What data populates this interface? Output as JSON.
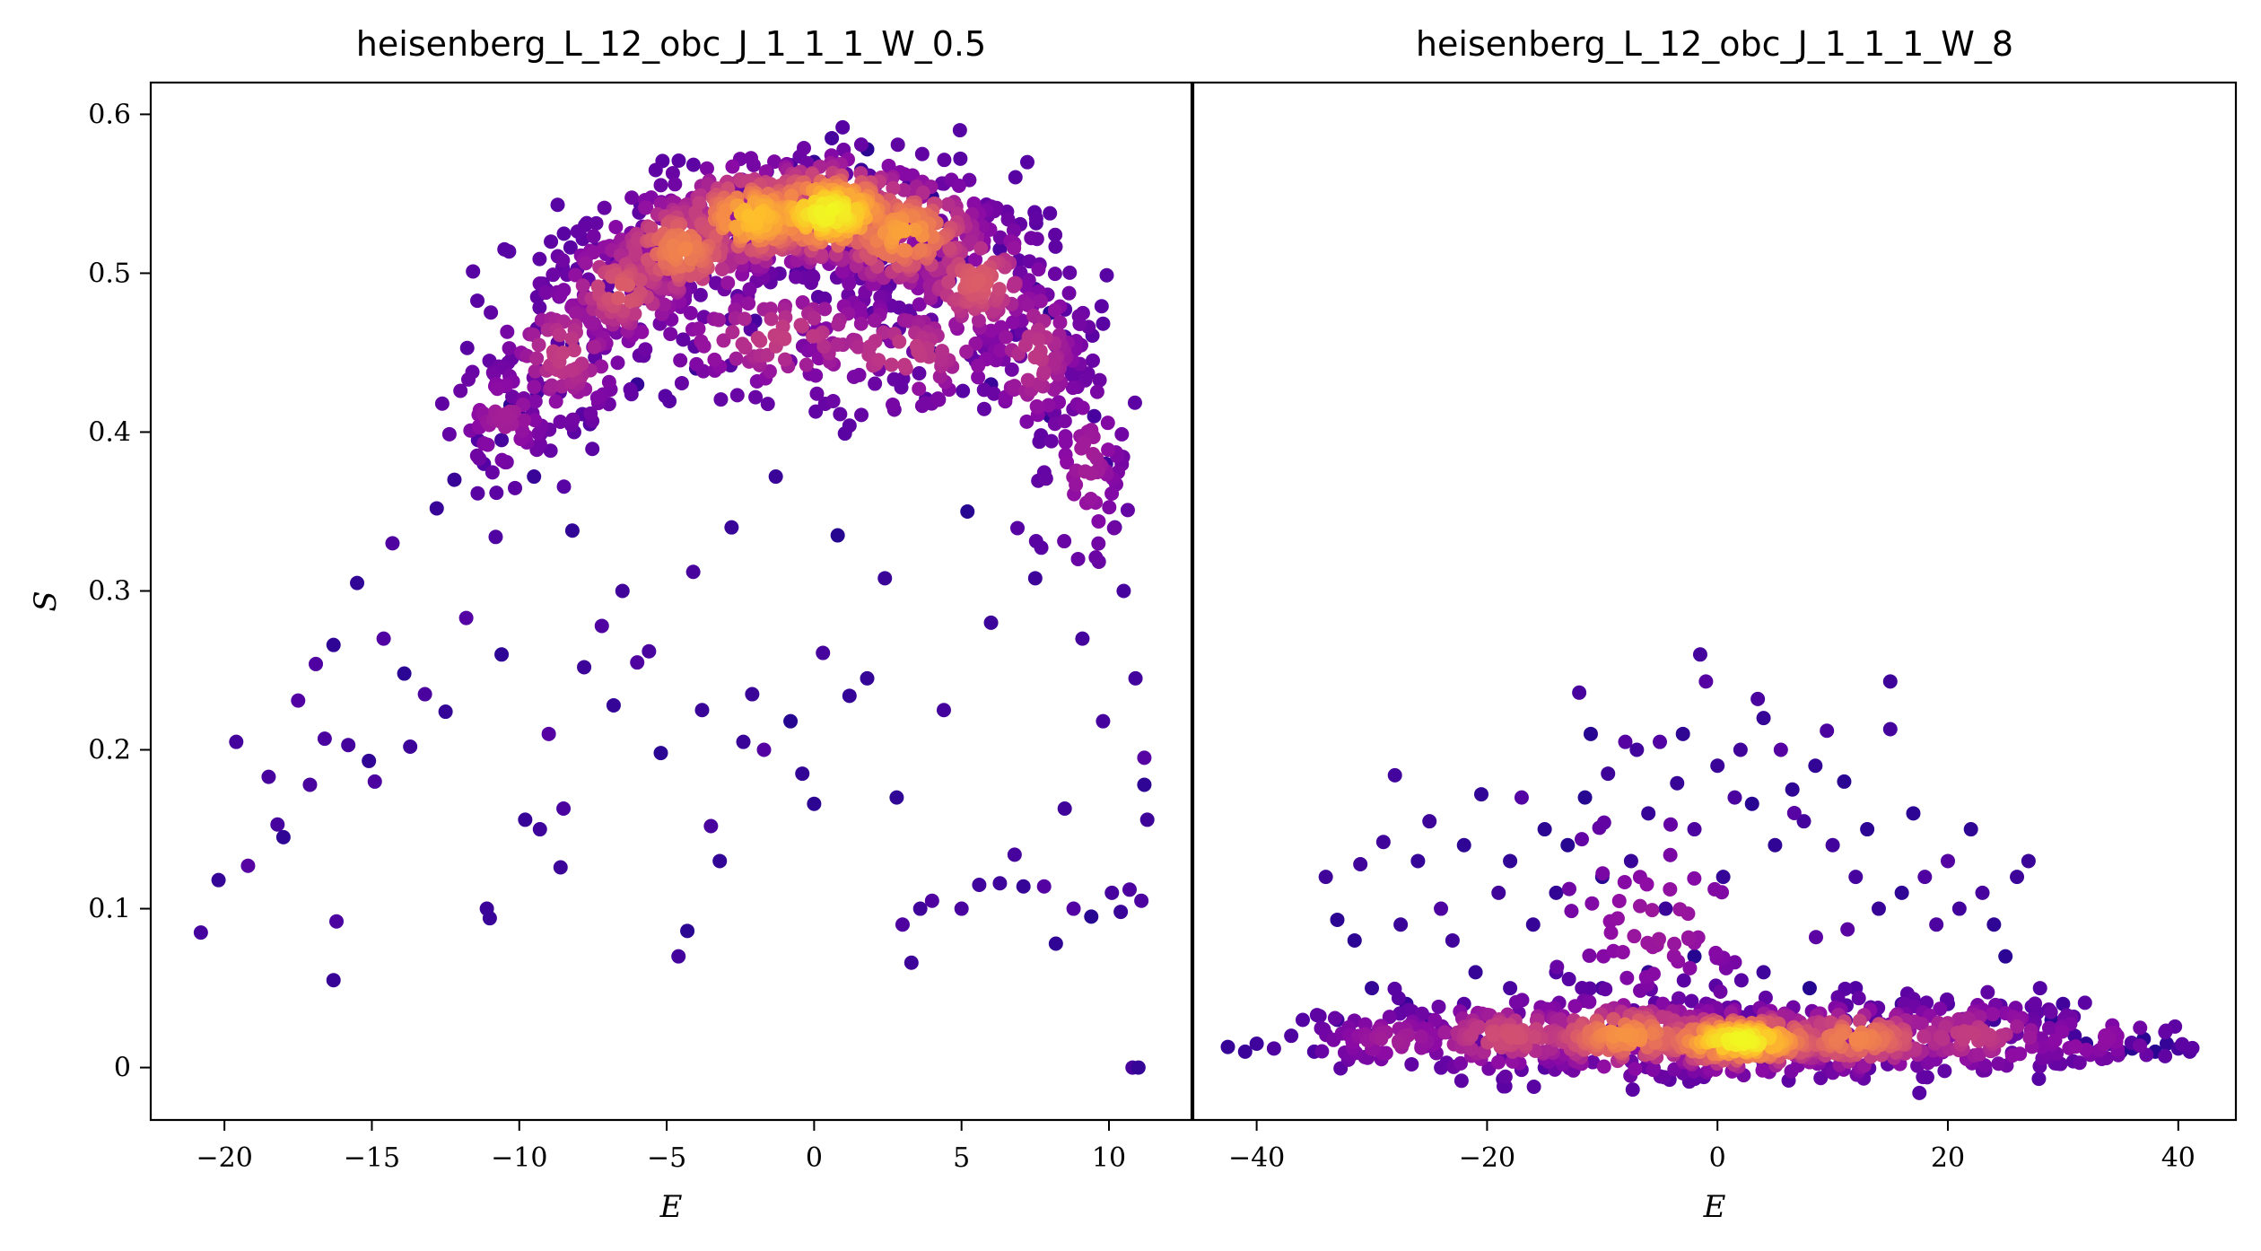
{
  "chart_data": [
    {
      "type": "scatter",
      "title": "heisenberg_L_12_obc_J_1_1_1_W_0.5",
      "xlabel": "E",
      "ylabel": "S",
      "xlim": [
        -22.5,
        12.8
      ],
      "ylim": [
        -0.033,
        0.62
      ],
      "xticks": [
        -20,
        -15,
        -10,
        -5,
        0,
        5,
        10
      ],
      "yticks": [
        0,
        0.1,
        0.2,
        0.3,
        0.4,
        0.5,
        0.6
      ],
      "ytick_labels": [
        "0",
        "0.1",
        "0.2",
        "0.3",
        "0.4",
        "0.5",
        "0.6"
      ],
      "colormap": "plasma",
      "color_encoding": "point density",
      "description_of_distribution": "dense band shaped as an arch peaking near E=0, S≈0.53 with a lower branch near S≈0.45; sparse points below",
      "points": [
        [
          -20.8,
          0.085
        ],
        [
          -20.2,
          0.118
        ],
        [
          -19.6,
          0.205
        ],
        [
          -19.2,
          0.127
        ],
        [
          -18.5,
          0.183
        ],
        [
          -18.2,
          0.153
        ],
        [
          -18.0,
          0.145
        ],
        [
          -17.5,
          0.231
        ],
        [
          -17.1,
          0.178
        ],
        [
          -16.9,
          0.254
        ],
        [
          -16.6,
          0.207
        ],
        [
          -16.3,
          0.055
        ],
        [
          -16.2,
          0.092
        ],
        [
          -16.3,
          0.266
        ],
        [
          -15.8,
          0.203
        ],
        [
          -15.5,
          0.305
        ],
        [
          -15.1,
          0.193
        ],
        [
          -14.9,
          0.18
        ],
        [
          -14.6,
          0.27
        ],
        [
          -14.3,
          0.33
        ],
        [
          -13.9,
          0.248
        ],
        [
          -13.7,
          0.202
        ],
        [
          -13.2,
          0.235
        ],
        [
          -12.8,
          0.352
        ],
        [
          -12.5,
          0.224
        ],
        [
          -12.2,
          0.37
        ],
        [
          -11.8,
          0.283
        ],
        [
          -11.4,
          0.395
        ],
        [
          -11.1,
          0.1
        ],
        [
          -11.0,
          0.094
        ],
        [
          -10.8,
          0.334
        ],
        [
          -10.6,
          0.26
        ],
        [
          -10.3,
          0.417
        ],
        [
          -9.8,
          0.156
        ],
        [
          -9.5,
          0.372
        ],
        [
          -9.3,
          0.15
        ],
        [
          -9.0,
          0.21
        ],
        [
          -8.6,
          0.126
        ],
        [
          -8.5,
          0.163
        ],
        [
          -8.2,
          0.338
        ],
        [
          -7.8,
          0.252
        ],
        [
          -7.6,
          0.405
        ],
        [
          -7.2,
          0.278
        ],
        [
          -6.8,
          0.228
        ],
        [
          -6.5,
          0.3
        ],
        [
          -6.0,
          0.255
        ],
        [
          -5.6,
          0.262
        ],
        [
          -5.2,
          0.198
        ],
        [
          -4.6,
          0.07
        ],
        [
          -4.3,
          0.086
        ],
        [
          -4.1,
          0.312
        ],
        [
          -3.8,
          0.225
        ],
        [
          -3.5,
          0.152
        ],
        [
          -3.2,
          0.13
        ],
        [
          -2.8,
          0.34
        ],
        [
          -2.4,
          0.205
        ],
        [
          -2.1,
          0.235
        ],
        [
          -1.7,
          0.2
        ],
        [
          -1.3,
          0.372
        ],
        [
          -0.8,
          0.218
        ],
        [
          -0.4,
          0.185
        ],
        [
          0.0,
          0.166
        ],
        [
          0.3,
          0.261
        ],
        [
          0.8,
          0.335
        ],
        [
          1.2,
          0.234
        ],
        [
          1.8,
          0.245
        ],
        [
          2.4,
          0.308
        ],
        [
          2.8,
          0.17
        ],
        [
          3.0,
          0.09
        ],
        [
          3.3,
          0.066
        ],
        [
          3.6,
          0.1
        ],
        [
          4.0,
          0.105
        ],
        [
          4.4,
          0.225
        ],
        [
          5.0,
          0.1
        ],
        [
          5.2,
          0.35
        ],
        [
          5.6,
          0.115
        ],
        [
          6.0,
          0.28
        ],
        [
          6.3,
          0.116
        ],
        [
          6.8,
          0.134
        ],
        [
          7.1,
          0.114
        ],
        [
          7.5,
          0.308
        ],
        [
          7.8,
          0.114
        ],
        [
          8.2,
          0.078
        ],
        [
          8.5,
          0.163
        ],
        [
          8.8,
          0.1
        ],
        [
          9.1,
          0.27
        ],
        [
          9.4,
          0.095
        ],
        [
          9.8,
          0.218
        ],
        [
          10.1,
          0.11
        ],
        [
          10.4,
          0.098
        ],
        [
          10.7,
          0.112
        ],
        [
          10.8,
          0.0
        ],
        [
          11.0,
          0.0
        ],
        [
          11.1,
          0.105
        ],
        [
          11.2,
          0.195
        ],
        [
          11.3,
          0.156
        ],
        [
          11.2,
          0.178
        ],
        [
          10.9,
          0.245
        ],
        [
          10.5,
          0.3
        ],
        [
          10.2,
          0.34
        ],
        [
          9.9,
          0.38
        ],
        [
          9.5,
          0.41
        ],
        [
          9.0,
          0.435
        ],
        [
          8.5,
          0.46
        ],
        [
          8.0,
          0.475
        ],
        [
          7.5,
          0.49
        ],
        [
          7.0,
          0.5
        ],
        [
          6.3,
          0.515
        ],
        [
          5.6,
          0.53
        ],
        [
          4.8,
          0.54
        ],
        [
          4.0,
          0.548
        ],
        [
          3.2,
          0.555
        ],
        [
          2.4,
          0.56
        ],
        [
          1.6,
          0.565
        ],
        [
          0.8,
          0.568
        ],
        [
          0.0,
          0.57
        ],
        [
          -0.8,
          0.568
        ],
        [
          -1.6,
          0.564
        ],
        [
          -2.4,
          0.558
        ],
        [
          -3.2,
          0.55
        ],
        [
          -4.0,
          0.54
        ],
        [
          -4.8,
          0.528
        ],
        [
          -5.6,
          0.514
        ],
        [
          -6.3,
          0.5
        ],
        [
          -7.0,
          0.486
        ],
        [
          -7.6,
          0.47
        ],
        [
          -8.2,
          0.455
        ],
        [
          -8.8,
          0.44
        ],
        [
          -9.4,
          0.425
        ],
        [
          -10.0,
          0.41
        ],
        [
          -10.6,
          0.395
        ],
        [
          -11.2,
          0.38
        ],
        [
          0.6,
          0.585
        ],
        [
          1.8,
          0.578
        ],
        [
          -0.6,
          0.5
        ],
        [
          0.4,
          0.51
        ],
        [
          -2.0,
          0.47
        ],
        [
          -4.0,
          0.44
        ],
        [
          -6.0,
          0.43
        ],
        [
          2.0,
          0.475
        ],
        [
          4.0,
          0.45
        ],
        [
          6.0,
          0.43
        ],
        [
          8.0,
          0.41
        ]
      ],
      "dense_band": [
        {
          "E_center": -10.5,
          "S_center": 0.41,
          "E_spread": 1.0,
          "S_spread": 0.02,
          "weight": 1.0
        },
        {
          "E_center": -8.5,
          "S_center": 0.45,
          "E_spread": 1.2,
          "S_spread": 0.025,
          "weight": 1.5
        },
        {
          "E_center": -6.5,
          "S_center": 0.49,
          "E_spread": 1.2,
          "S_spread": 0.02,
          "weight": 2.0
        },
        {
          "E_center": -4.5,
          "S_center": 0.515,
          "E_spread": 1.4,
          "S_spread": 0.02,
          "weight": 2.6
        },
        {
          "E_center": -2.0,
          "S_center": 0.535,
          "E_spread": 1.6,
          "S_spread": 0.018,
          "weight": 3.4
        },
        {
          "E_center": 0.5,
          "S_center": 0.538,
          "E_spread": 1.8,
          "S_spread": 0.018,
          "weight": 4.0
        },
        {
          "E_center": 3.0,
          "S_center": 0.525,
          "E_spread": 1.6,
          "S_spread": 0.02,
          "weight": 3.0
        },
        {
          "E_center": 5.5,
          "S_center": 0.495,
          "E_spread": 1.3,
          "S_spread": 0.022,
          "weight": 2.0
        },
        {
          "E_center": 7.5,
          "S_center": 0.45,
          "E_spread": 1.0,
          "S_spread": 0.03,
          "weight": 1.4
        },
        {
          "E_center": 9.3,
          "S_center": 0.38,
          "E_spread": 0.8,
          "S_spread": 0.035,
          "weight": 1.0
        },
        {
          "E_center": -1.0,
          "S_center": 0.46,
          "E_spread": 2.5,
          "S_spread": 0.02,
          "weight": 1.5
        },
        {
          "E_center": 3.0,
          "S_center": 0.45,
          "E_spread": 2.2,
          "S_spread": 0.02,
          "weight": 1.5
        }
      ]
    },
    {
      "type": "scatter",
      "title": "heisenberg_L_12_obc_J_1_1_1_W_8",
      "xlabel": "E",
      "ylabel": "",
      "xlim": [
        -45.5,
        45
      ],
      "ylim": [
        -0.033,
        0.62
      ],
      "xticks": [
        -40,
        -20,
        0,
        20,
        40
      ],
      "yticks": [],
      "colormap": "plasma",
      "color_encoding": "point density",
      "description_of_distribution": "flat dense band near S≈0.015 centered at E≈2; sparse cloud of points up to S≈0.26",
      "points": [
        [
          -42.5,
          0.013
        ],
        [
          -41.0,
          0.01
        ],
        [
          -40.0,
          0.015
        ],
        [
          -38.5,
          0.012
        ],
        [
          -37.0,
          0.02
        ],
        [
          -36.0,
          0.03
        ],
        [
          -34.0,
          0.12
        ],
        [
          -33.0,
          0.093
        ],
        [
          -31.5,
          0.08
        ],
        [
          -31.0,
          0.128
        ],
        [
          -30.0,
          0.05
        ],
        [
          -29.0,
          0.142
        ],
        [
          -28.0,
          0.184
        ],
        [
          -27.5,
          0.09
        ],
        [
          -26.0,
          0.13
        ],
        [
          -25.0,
          0.155
        ],
        [
          -24.0,
          0.1
        ],
        [
          -23.0,
          0.08
        ],
        [
          -22.0,
          0.14
        ],
        [
          -21.0,
          0.06
        ],
        [
          -20.5,
          0.172
        ],
        [
          -19.0,
          0.11
        ],
        [
          -18.0,
          0.13
        ],
        [
          -17.0,
          0.17
        ],
        [
          -16.0,
          0.09
        ],
        [
          -15.0,
          0.15
        ],
        [
          -14.0,
          0.11
        ],
        [
          -13.0,
          0.14
        ],
        [
          -12.0,
          0.236
        ],
        [
          -11.5,
          0.17
        ],
        [
          -11.0,
          0.21
        ],
        [
          -10.0,
          0.12
        ],
        [
          -9.5,
          0.185
        ],
        [
          -8.0,
          0.205
        ],
        [
          -7.5,
          0.13
        ],
        [
          -7.0,
          0.2
        ],
        [
          -6.0,
          0.16
        ],
        [
          -5.0,
          0.205
        ],
        [
          -4.5,
          0.1
        ],
        [
          -3.5,
          0.179
        ],
        [
          -3.0,
          0.21
        ],
        [
          -2.0,
          0.15
        ],
        [
          -1.5,
          0.26
        ],
        [
          -1.0,
          0.243
        ],
        [
          0.0,
          0.19
        ],
        [
          0.5,
          0.12
        ],
        [
          1.5,
          0.17
        ],
        [
          2.0,
          0.2
        ],
        [
          3.0,
          0.166
        ],
        [
          3.5,
          0.232
        ],
        [
          4.0,
          0.22
        ],
        [
          5.0,
          0.14
        ],
        [
          5.5,
          0.2
        ],
        [
          6.5,
          0.175
        ],
        [
          7.5,
          0.155
        ],
        [
          8.5,
          0.19
        ],
        [
          9.5,
          0.212
        ],
        [
          10.0,
          0.14
        ],
        [
          11.0,
          0.18
        ],
        [
          12.0,
          0.12
        ],
        [
          13.0,
          0.15
        ],
        [
          14.0,
          0.1
        ],
        [
          15.0,
          0.243
        ],
        [
          15.0,
          0.213
        ],
        [
          16.0,
          0.11
        ],
        [
          17.0,
          0.16
        ],
        [
          18.0,
          0.12
        ],
        [
          19.0,
          0.09
        ],
        [
          20.0,
          0.13
        ],
        [
          21.0,
          0.1
        ],
        [
          22.0,
          0.15
        ],
        [
          23.0,
          0.11
        ],
        [
          24.0,
          0.09
        ],
        [
          25.0,
          0.07
        ],
        [
          26.0,
          0.12
        ],
        [
          26.5,
          0.03
        ],
        [
          27.0,
          0.13
        ],
        [
          28.0,
          0.05
        ],
        [
          29.0,
          0.03
        ],
        [
          30.0,
          0.04
        ],
        [
          31.0,
          0.02
        ],
        [
          32.0,
          0.015
        ],
        [
          33.0,
          0.01
        ],
        [
          34.0,
          0.015
        ],
        [
          35.0,
          0.01
        ],
        [
          36.0,
          0.012
        ],
        [
          37.0,
          0.018
        ],
        [
          38.0,
          0.01
        ],
        [
          39.0,
          0.015
        ],
        [
          40.0,
          0.012
        ],
        [
          41.0,
          0.01
        ],
        [
          -35.0,
          0.01
        ],
        [
          -33.0,
          0.03
        ],
        [
          -30.0,
          0.02
        ],
        [
          -27.0,
          0.04
        ],
        [
          -25.0,
          0.03
        ],
        [
          -22.0,
          0.04
        ],
        [
          -18.0,
          0.05
        ],
        [
          -14.0,
          0.06
        ],
        [
          -10.0,
          0.05
        ],
        [
          -6.0,
          0.06
        ],
        [
          -2.0,
          0.07
        ],
        [
          4.0,
          0.06
        ],
        [
          8.0,
          0.05
        ],
        [
          12.0,
          0.05
        ],
        [
          16.0,
          0.04
        ],
        [
          20.0,
          0.04
        ],
        [
          24.0,
          0.03
        ]
      ],
      "dense_band": [
        {
          "E_center": -28.0,
          "S_center": 0.018,
          "E_spread": 4.0,
          "S_spread": 0.01,
          "weight": 1.0
        },
        {
          "E_center": -18.0,
          "S_center": 0.02,
          "E_spread": 5.0,
          "S_spread": 0.012,
          "weight": 1.8
        },
        {
          "E_center": -8.0,
          "S_center": 0.02,
          "E_spread": 5.0,
          "S_spread": 0.012,
          "weight": 2.8
        },
        {
          "E_center": 2.0,
          "S_center": 0.017,
          "E_spread": 5.0,
          "S_spread": 0.01,
          "weight": 4.0
        },
        {
          "E_center": 12.0,
          "S_center": 0.018,
          "E_spread": 5.0,
          "S_spread": 0.011,
          "weight": 2.6
        },
        {
          "E_center": 22.0,
          "S_center": 0.02,
          "E_spread": 5.0,
          "S_spread": 0.012,
          "weight": 1.5
        },
        {
          "E_center": 32.0,
          "S_center": 0.018,
          "E_spread": 4.0,
          "S_spread": 0.01,
          "weight": 0.8
        },
        {
          "E_center": -5.0,
          "S_center": 0.09,
          "E_spread": 6.0,
          "S_spread": 0.035,
          "weight": 0.9
        }
      ]
    }
  ]
}
